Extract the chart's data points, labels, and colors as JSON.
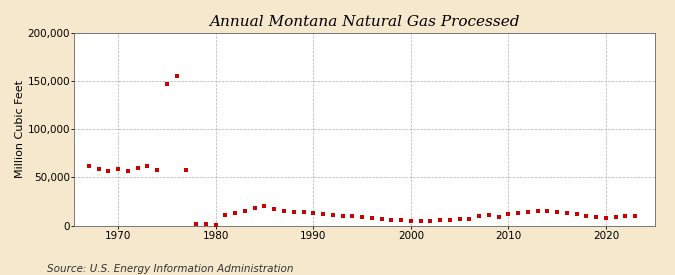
{
  "title": "Annual Montana Natural Gas Processed",
  "ylabel": "Million Cubic Feet",
  "source": "Source: U.S. Energy Information Administration",
  "background_color": "#f5e8cc",
  "plot_background_color": "#ffffff",
  "marker_color": "#cc0000",
  "title_fontsize": 11,
  "ylabel_fontsize": 8,
  "source_fontsize": 7.5,
  "xlim": [
    1965.5,
    2025
  ],
  "ylim": [
    0,
    200000
  ],
  "yticks": [
    0,
    50000,
    100000,
    150000,
    200000
  ],
  "xticks": [
    1970,
    1980,
    1990,
    2000,
    2010,
    2020
  ],
  "years": [
    1967,
    1968,
    1969,
    1970,
    1971,
    1972,
    1973,
    1974,
    1975,
    1976,
    1977,
    1978,
    1979,
    1980,
    1981,
    1982,
    1983,
    1984,
    1985,
    1986,
    1987,
    1988,
    1989,
    1990,
    1991,
    1992,
    1993,
    1994,
    1995,
    1996,
    1997,
    1998,
    1999,
    2000,
    2001,
    2002,
    2003,
    2004,
    2005,
    2006,
    2007,
    2008,
    2009,
    2010,
    2011,
    2012,
    2013,
    2014,
    2015,
    2016,
    2017,
    2018,
    2019,
    2020,
    2021,
    2022,
    2023
  ],
  "values": [
    62000,
    59000,
    57000,
    59000,
    57000,
    60000,
    62000,
    58000,
    147000,
    155000,
    58000,
    2000,
    2000,
    1000,
    11000,
    13000,
    15000,
    18000,
    20000,
    17000,
    15000,
    14000,
    14000,
    13000,
    12000,
    11000,
    10000,
    10000,
    9000,
    8000,
    7000,
    6000,
    6000,
    5000,
    5000,
    5000,
    5500,
    6000,
    6500,
    7000,
    10000,
    11000,
    9000,
    12000,
    13000,
    14000,
    15000,
    15000,
    14000,
    13000,
    12000,
    10000,
    9000,
    8000,
    9000,
    10000,
    10000
  ]
}
